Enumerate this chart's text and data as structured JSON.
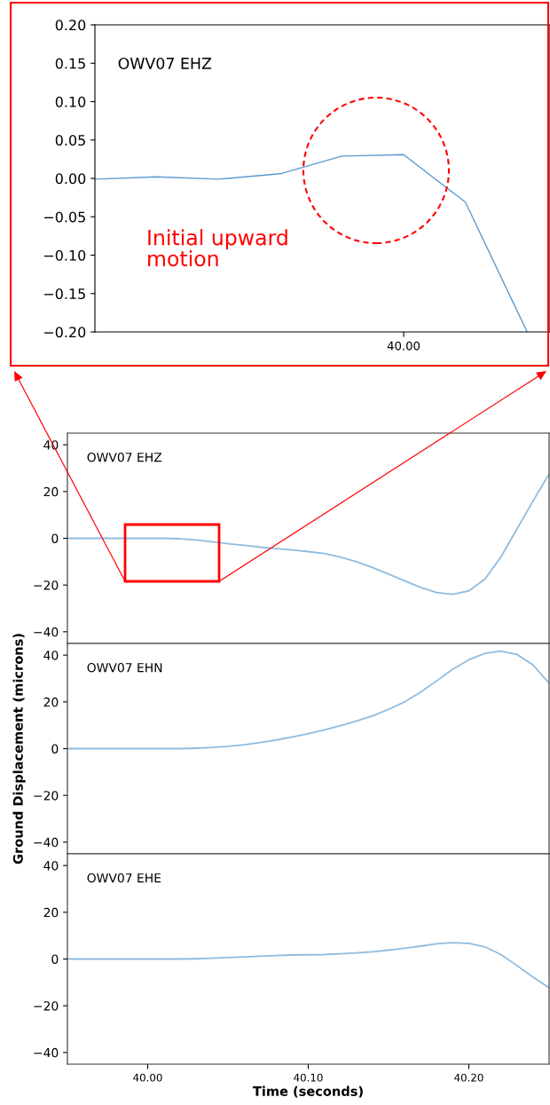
{
  "chart_data": [
    {
      "type": "line",
      "title": "OWV07 EHZ",
      "categories": [
        null,
        null,
        null,
        null,
        null,
        "40.00",
        null,
        null
      ],
      "series": [
        {
          "color": "#5b9bd0",
          "values": [
            -0.001,
            0.002,
            -0.001,
            0.006,
            0.029,
            0.031,
            -0.031,
            -0.2
          ]
        }
      ],
      "ylim": [
        -0.2,
        0.2
      ],
      "yticks": [
        {
          "value": 0.2,
          "label": "0.20"
        },
        {
          "value": 0.15,
          "label": "0.15"
        },
        {
          "value": 0.1,
          "label": "0.10"
        },
        {
          "value": 0.05,
          "label": "0.05"
        },
        {
          "value": 0.0,
          "label": "0.00"
        },
        {
          "value": -0.05,
          "label": "−0.05"
        },
        {
          "value": -0.1,
          "label": "−0.10"
        },
        {
          "value": -0.15,
          "label": "−0.15"
        },
        {
          "value": -0.2,
          "label": "−0.20"
        }
      ],
      "annotations": [
        "Initial upward\nmotion"
      ],
      "grid": false,
      "legend": false
    },
    {
      "type": "line",
      "title": "OWV07 EHZ",
      "x": [
        39.95,
        39.96,
        39.97,
        39.98,
        39.99,
        40.0,
        40.01,
        40.02,
        40.03,
        40.04,
        40.05,
        40.06,
        40.07,
        40.08,
        40.09,
        40.1,
        40.11,
        40.12,
        40.13,
        40.14,
        40.15,
        40.16,
        40.17,
        40.18,
        40.19,
        40.2,
        40.21,
        40.22,
        40.23,
        40.24,
        40.25
      ],
      "series": [
        {
          "color": "#8fbce0",
          "values": [
            0,
            0,
            0,
            0,
            0,
            0,
            0,
            -0.2,
            -0.7,
            -1.5,
            -2.3,
            -3.0,
            -3.8,
            -4.4,
            -5.0,
            -5.7,
            -6.5,
            -8.0,
            -10.0,
            -12.5,
            -15.3,
            -18.2,
            -21.0,
            -23.2,
            -24.0,
            -22.5,
            -17.5,
            -8.0,
            4.0,
            16.0,
            27.5
          ]
        }
      ],
      "xlim": [
        39.95,
        40.25
      ],
      "ylim": [
        -45,
        45
      ],
      "yticks": [
        {
          "value": -40,
          "label": "−40"
        },
        {
          "value": -20,
          "label": "−20"
        },
        0,
        20,
        40
      ],
      "tick_labels": "y",
      "grid": false,
      "legend": false
    },
    {
      "type": "line",
      "title": "OWV07 EHN",
      "ylabel": "Ground Displacement (microns)",
      "x": [
        39.95,
        39.96,
        39.97,
        39.98,
        39.99,
        40.0,
        40.01,
        40.02,
        40.03,
        40.04,
        40.05,
        40.06,
        40.07,
        40.08,
        40.09,
        40.1,
        40.11,
        40.12,
        40.13,
        40.14,
        40.15,
        40.16,
        40.17,
        40.18,
        40.19,
        40.2,
        40.21,
        40.22,
        40.23,
        40.24,
        40.25
      ],
      "series": [
        {
          "color": "#8fbce0",
          "values": [
            0,
            0,
            0,
            0,
            0,
            0,
            0,
            0,
            0.2,
            0.5,
            1.0,
            1.7,
            2.6,
            3.7,
            5.0,
            6.4,
            8.0,
            9.8,
            11.8,
            14.0,
            16.8,
            20.0,
            24.2,
            29.0,
            34.0,
            38.0,
            40.8,
            41.7,
            40.3,
            35.8,
            28.0
          ]
        }
      ],
      "xlim": [
        39.95,
        40.25
      ],
      "ylim": [
        -45,
        45
      ],
      "yticks": [
        {
          "value": -40,
          "label": "−40"
        },
        {
          "value": -20,
          "label": "−20"
        },
        0,
        20,
        40
      ],
      "tick_labels": "y",
      "grid": false,
      "legend": false
    },
    {
      "type": "line",
      "title": "OWV07 EHE",
      "xlabel": "Time (seconds)",
      "x": [
        39.95,
        39.96,
        39.97,
        39.98,
        39.99,
        40.0,
        40.01,
        40.02,
        40.03,
        40.04,
        40.05,
        40.06,
        40.07,
        40.08,
        40.09,
        40.1,
        40.11,
        40.12,
        40.13,
        40.14,
        40.15,
        40.16,
        40.17,
        40.18,
        40.19,
        40.2,
        40.21,
        40.22,
        40.23,
        40.24,
        40.25
      ],
      "series": [
        {
          "color": "#8fbce0",
          "values": [
            0,
            0,
            0,
            0,
            0,
            0,
            0,
            0,
            0.1,
            0.3,
            0.6,
            0.9,
            1.2,
            1.5,
            1.7,
            1.8,
            1.9,
            2.2,
            2.6,
            3.1,
            3.8,
            4.6,
            5.5,
            6.5,
            7.0,
            6.7,
            5.2,
            1.9,
            -2.8,
            -7.8,
            -12.3
          ]
        }
      ],
      "xlim": [
        39.95,
        40.25
      ],
      "xticks": [
        {
          "value": 40.0,
          "label": "40.00"
        },
        {
          "value": 40.1,
          "label": "40.10"
        },
        {
          "value": 40.2,
          "label": "40.20"
        }
      ],
      "ylim": [
        -45,
        45
      ],
      "yticks": [
        {
          "value": -40,
          "label": "−40"
        },
        {
          "value": -20,
          "label": "−20"
        },
        0,
        20,
        40
      ],
      "grid": false,
      "legend": false
    }
  ]
}
